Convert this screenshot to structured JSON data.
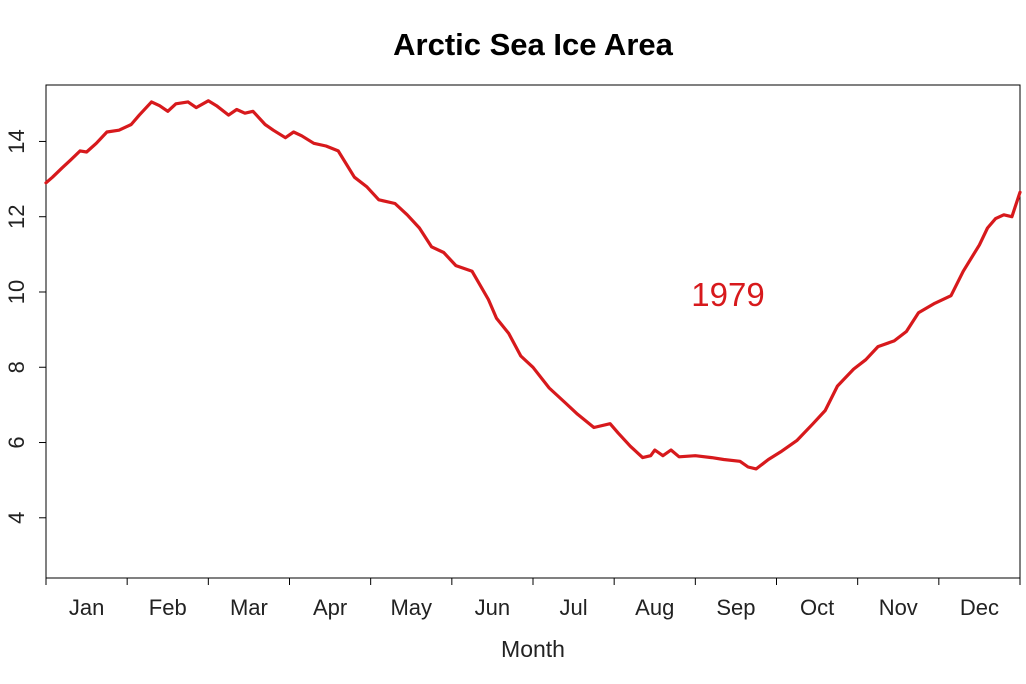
{
  "chart_data": {
    "type": "line",
    "title": "Arctic Sea Ice Area",
    "xlabel": "Month",
    "ylabel": "",
    "categories": [
      "Jan",
      "Feb",
      "Mar",
      "Apr",
      "May",
      "Jun",
      "Jul",
      "Aug",
      "Sep",
      "Oct",
      "Nov",
      "Dec"
    ],
    "yticks": [
      4,
      6,
      8,
      10,
      12,
      14
    ],
    "ylim": [
      2.4,
      15.5
    ],
    "xlim": [
      0,
      12
    ],
    "annotation": "1979",
    "series": [
      {
        "color": "#d7191c",
        "x": [
          0,
          0.08,
          0.2,
          0.3,
          0.42,
          0.5,
          0.62,
          0.75,
          0.9,
          1.05,
          1.15,
          1.3,
          1.4,
          1.5,
          1.6,
          1.75,
          1.85,
          2.0,
          2.1,
          2.25,
          2.35,
          2.45,
          2.55,
          2.7,
          2.8,
          2.95,
          3.05,
          3.15,
          3.3,
          3.45,
          3.6,
          3.8,
          3.95,
          4.1,
          4.3,
          4.45,
          4.6,
          4.75,
          4.9,
          5.05,
          5.25,
          5.45,
          5.55,
          5.7,
          5.85,
          6.0,
          6.2,
          6.4,
          6.55,
          6.75,
          6.95,
          7.05,
          7.2,
          7.35,
          7.45,
          7.5,
          7.6,
          7.7,
          7.8,
          8.0,
          8.2,
          8.35,
          8.55,
          8.65,
          8.75,
          8.9,
          9.05,
          9.25,
          9.45,
          9.6,
          9.75,
          9.95,
          10.1,
          10.25,
          10.45,
          10.6,
          10.75,
          10.95,
          11.15,
          11.3,
          11.5,
          11.6,
          11.7,
          11.8,
          11.9,
          12.0
        ],
        "y": [
          12.9,
          13.05,
          13.3,
          13.5,
          13.75,
          13.72,
          13.95,
          14.25,
          14.3,
          14.45,
          14.7,
          15.05,
          14.95,
          14.8,
          15.0,
          15.05,
          14.9,
          15.08,
          14.95,
          14.7,
          14.85,
          14.75,
          14.8,
          14.45,
          14.3,
          14.1,
          14.25,
          14.15,
          13.95,
          13.88,
          13.75,
          13.05,
          12.8,
          12.45,
          12.35,
          12.05,
          11.7,
          11.2,
          11.05,
          10.7,
          10.55,
          9.8,
          9.3,
          8.9,
          8.3,
          8.0,
          7.45,
          7.05,
          6.75,
          6.4,
          6.5,
          6.25,
          5.9,
          5.6,
          5.65,
          5.8,
          5.65,
          5.8,
          5.62,
          5.65,
          5.6,
          5.55,
          5.5,
          5.35,
          5.3,
          5.55,
          5.75,
          6.05,
          6.5,
          6.85,
          7.5,
          7.95,
          8.2,
          8.55,
          8.7,
          8.95,
          9.45,
          9.7,
          9.9,
          10.55,
          11.25,
          11.7,
          11.95,
          12.05,
          12.0,
          12.65
        ]
      }
    ]
  }
}
